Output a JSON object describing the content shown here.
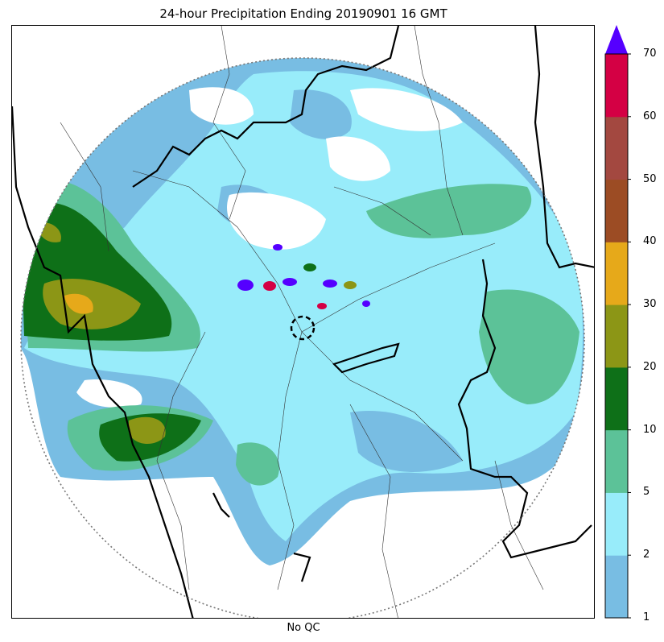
{
  "title": "24-hour Precipitation Ending 20190901 16 GMT",
  "caption": "No QC",
  "colorbar": {
    "levels": [
      1,
      2,
      5,
      10,
      20,
      30,
      40,
      50,
      60,
      70
    ],
    "tick_labels": [
      "1",
      "2",
      "5",
      "10",
      "20",
      "30",
      "40",
      "50",
      "60",
      "70"
    ],
    "colors": [
      "#78bde3",
      "#98ecfa",
      "#5cc298",
      "#0e7018",
      "#8c9616",
      "#e6a91a",
      "#9c4c24",
      "#a34840",
      "#d40044"
    ],
    "extend_max_color": "#5500ff"
  },
  "map": {
    "radar_range_ring": "dotted",
    "radar_site_marker": "dashed-circle"
  }
}
